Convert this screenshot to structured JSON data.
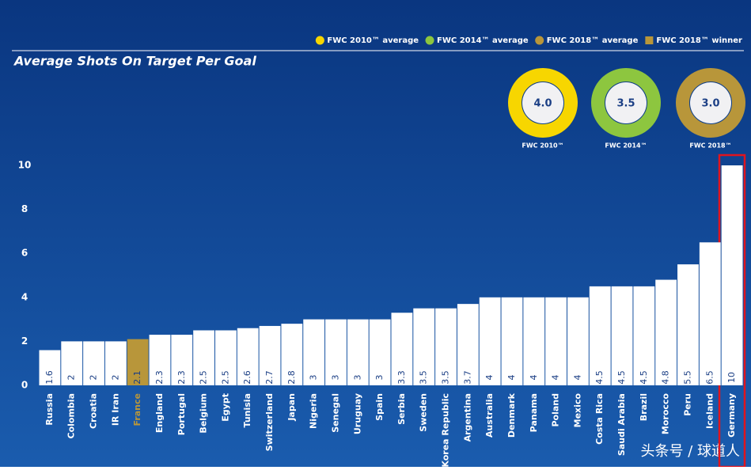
{
  "chart_data": {
    "type": "bar",
    "title": "Average Shots On Target Per Goal",
    "categories": [
      "Russia",
      "Colombia",
      "Croatia",
      "IR Iran",
      "France",
      "England",
      "Portugal",
      "Belgium",
      "Egypt",
      "Tunisia",
      "Switzerland",
      "Japan",
      "Nigeria",
      "Senegal",
      "Uruguay",
      "Spain",
      "Serbia",
      "Sweden",
      "Korea Republic",
      "Argentina",
      "Australia",
      "Denmark",
      "Panama",
      "Poland",
      "Mexico",
      "Costa Rica",
      "Saudi Arabia",
      "Brazil",
      "Morocco",
      "Peru",
      "Iceland",
      "Germany"
    ],
    "values": [
      1.6,
      2,
      2,
      2,
      2.1,
      2.3,
      2.3,
      2.5,
      2.5,
      2.6,
      2.7,
      2.8,
      3,
      3,
      3,
      3,
      3.3,
      3.5,
      3.5,
      3.7,
      4,
      4,
      4,
      4,
      4,
      4.5,
      4.5,
      4.5,
      4.8,
      5.5,
      6.5,
      10
    ],
    "colors": [
      "#ffffff",
      "#ffffff",
      "#ffffff",
      "#ffffff",
      "#b8963a",
      "#ffffff",
      "#ffffff",
      "#ffffff",
      "#ffffff",
      "#ffffff",
      "#ffffff",
      "#ffffff",
      "#ffffff",
      "#ffffff",
      "#ffffff",
      "#ffffff",
      "#ffffff",
      "#ffffff",
      "#ffffff",
      "#ffffff",
      "#ffffff",
      "#ffffff",
      "#ffffff",
      "#ffffff",
      "#ffffff",
      "#ffffff",
      "#ffffff",
      "#ffffff",
      "#ffffff",
      "#ffffff",
      "#ffffff",
      "#ffffff"
    ],
    "ylim": [
      0,
      10
    ],
    "yticks": [
      0,
      2,
      4,
      6,
      8,
      10
    ],
    "averages": [
      {
        "name": "FWC 2010™ average",
        "label": "FWC 2010™",
        "value": 4,
        "value_label": "4.0",
        "color": "#f7d600"
      },
      {
        "name": "FWC 2014™ average",
        "label": "FWC 2014™",
        "value": 3.5,
        "value_label": "3.5",
        "color": "#8dc63f"
      },
      {
        "name": "FWC 2018™ average",
        "label": "FWC 2018™",
        "value": 3,
        "value_label": "3.0",
        "color": "#b8963a"
      }
    ],
    "winner_legend": {
      "name": "FWC 2018™ winner",
      "color": "#b8963a"
    },
    "watermark": "头条号 / 球道人"
  }
}
